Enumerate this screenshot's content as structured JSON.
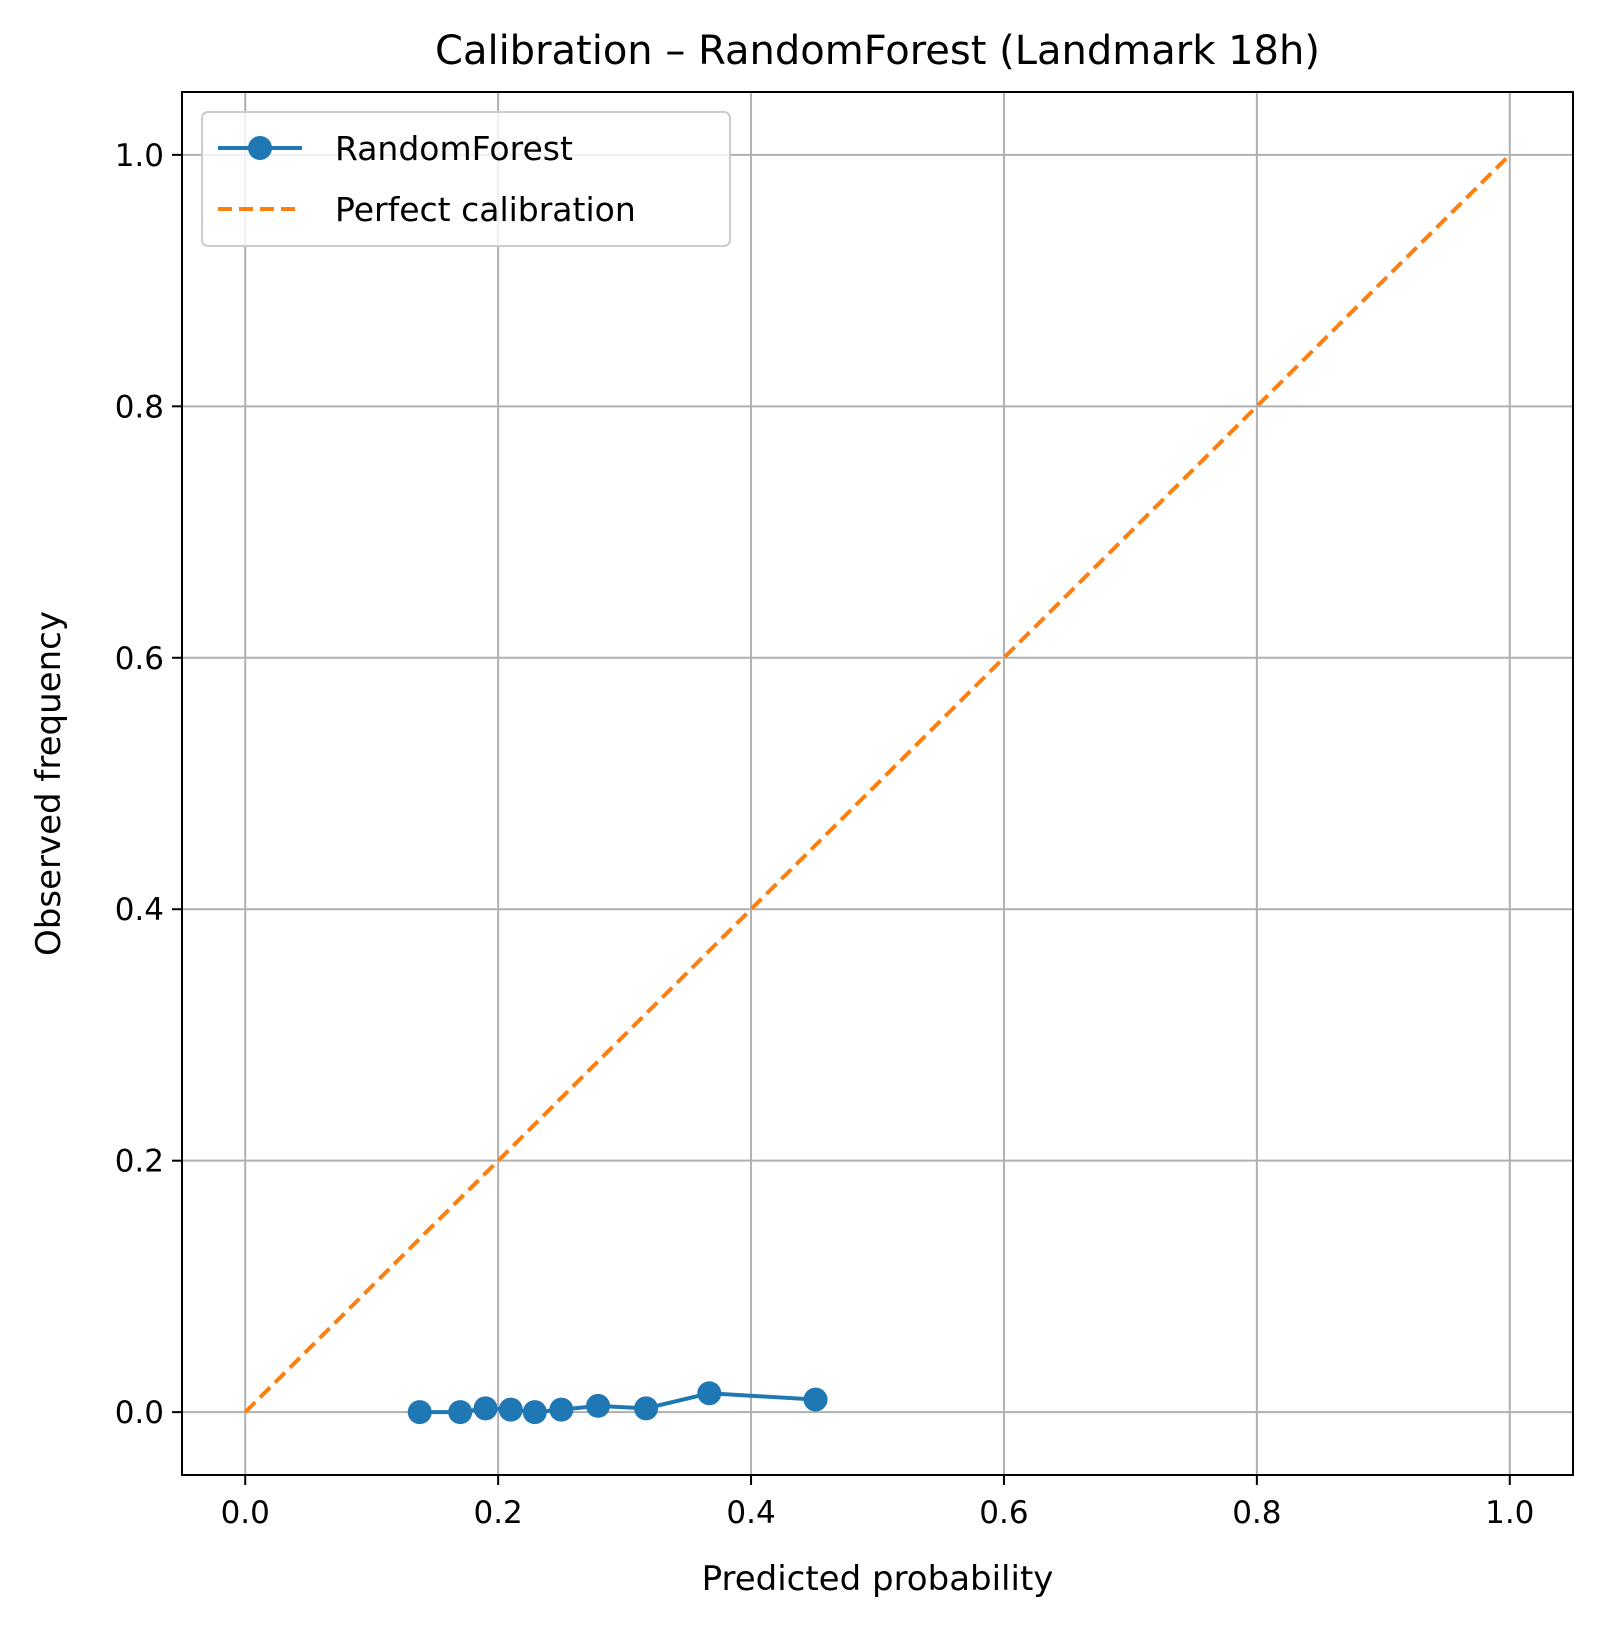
{
  "chart_data": {
    "type": "line",
    "title": "Calibration – RandomForest (Landmark 18h)",
    "xlabel": "Predicted probability",
    "ylabel": "Observed frequency",
    "xlim": [
      -0.05,
      1.05
    ],
    "ylim": [
      -0.05,
      1.05
    ],
    "xticks": [
      0.0,
      0.2,
      0.4,
      0.6,
      0.8,
      1.0
    ],
    "xtick_labels": [
      "0.0",
      "0.2",
      "0.4",
      "0.6",
      "0.8",
      "1.0"
    ],
    "yticks": [
      0.0,
      0.2,
      0.4,
      0.6,
      0.8,
      1.0
    ],
    "ytick_labels": [
      "0.0",
      "0.2",
      "0.4",
      "0.6",
      "0.8",
      "1.0"
    ],
    "grid": true,
    "legend_position": "top-left",
    "series": [
      {
        "name": "RandomForest",
        "style": "solid-with-markers",
        "color": "#1f77b4",
        "x": [
          0.138,
          0.17,
          0.19,
          0.21,
          0.229,
          0.25,
          0.279,
          0.317,
          0.367,
          0.451
        ],
        "y": [
          0.0,
          0.0,
          0.003,
          0.002,
          0.0,
          0.002,
          0.005,
          0.003,
          0.015,
          0.01
        ]
      },
      {
        "name": "Perfect calibration",
        "style": "dashed",
        "color": "#ff7f0e",
        "x": [
          0.0,
          1.0
        ],
        "y": [
          0.0,
          1.0
        ]
      }
    ]
  }
}
